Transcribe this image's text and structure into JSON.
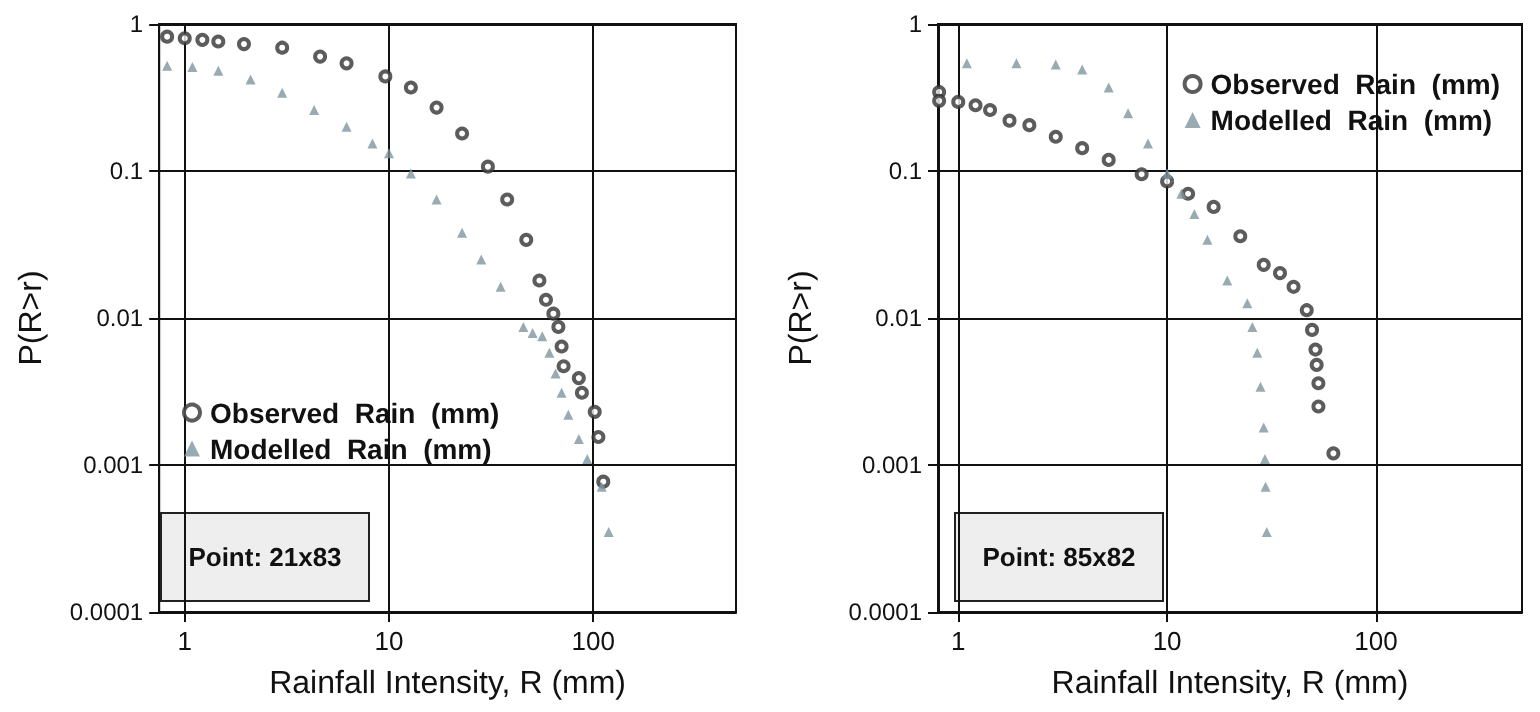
{
  "chart_data": [
    {
      "type": "scatter",
      "xlabel": "Rainfall Intensity, R (mm)",
      "ylabel": "P(R>r)",
      "log": "xy",
      "grid": true,
      "legend": "left",
      "xlim": [
        0.75,
        500
      ],
      "xticks": [
        1,
        10,
        100
      ],
      "ylim": [
        0.0001,
        1
      ],
      "yticks": [
        0.0001,
        0.001,
        0.01,
        0.1,
        1
      ],
      "annotations": [
        "Point: 21x83"
      ],
      "series": [
        {
          "name": "Observed  Rain  (mm)",
          "color": "#333333",
          "marker": "circle",
          "x": [
            0.82,
            1,
            1.22,
            1.46,
            1.95,
            3.0,
            4.6,
            6.2,
            9.6,
            12.8,
            17.1,
            22.8,
            30.5,
            37.9,
            47,
            54.5,
            58.7,
            63.8,
            67.5,
            70,
            71.6,
            85,
            88,
            101.7,
            106,
            112
          ],
          "values": [
            0.82,
            0.8,
            0.78,
            0.76,
            0.73,
            0.69,
            0.6,
            0.54,
            0.44,
            0.37,
            0.27,
            0.18,
            0.107,
            0.064,
            0.034,
            0.018,
            0.0133,
            0.0107,
            0.0087,
            0.0064,
            0.0047,
            0.0039,
            0.0031,
            0.0023,
            0.00155,
            0.00077
          ]
        },
        {
          "name": "Modelled  Rain  (mm)",
          "color": "#7f969f",
          "marker": "triangle",
          "x": [
            0.82,
            1.09,
            1.46,
            2.1,
            3.0,
            4.3,
            6.2,
            8.3,
            10,
            12.8,
            17.1,
            22.8,
            28.3,
            35.2,
            45.5,
            50.5,
            56.3,
            61,
            65.4,
            70,
            75.5,
            85,
            93.5,
            110,
            119
          ],
          "values": [
            0.52,
            0.51,
            0.48,
            0.42,
            0.34,
            0.26,
            0.2,
            0.154,
            0.132,
            0.096,
            0.064,
            0.038,
            0.025,
            0.0163,
            0.0087,
            0.0079,
            0.0075,
            0.0058,
            0.0042,
            0.0031,
            0.0022,
            0.0015,
            0.0011,
            0.00071,
            0.00035
          ]
        }
      ]
    },
    {
      "type": "scatter",
      "xlabel": "Rainfall Intensity, R (mm)",
      "ylabel": "P(R>r)",
      "log": "xy",
      "grid": true,
      "legend": "top right",
      "xlim": [
        0.8,
        500
      ],
      "xticks": [
        1,
        10,
        100
      ],
      "ylim": [
        0.0001,
        1
      ],
      "yticks": [
        0.0001,
        0.001,
        0.01,
        0.1,
        1
      ],
      "annotations": [
        "Point: 85x82"
      ],
      "series": [
        {
          "name": "Observed  Rain  (mm)",
          "color": "#333333",
          "marker": "circle",
          "x": [
            0.81,
            0.81,
            1,
            1.21,
            1.42,
            1.76,
            2.19,
            2.93,
            3.92,
            5.25,
            7.55,
            10,
            12.6,
            16.7,
            22.4,
            29.0,
            34.7,
            40.3,
            46.6,
            49.4,
            51.3,
            52.0,
            53.0,
            53.0,
            62.5
          ],
          "values": [
            0.345,
            0.3,
            0.295,
            0.28,
            0.26,
            0.22,
            0.205,
            0.171,
            0.143,
            0.119,
            0.095,
            0.085,
            0.07,
            0.057,
            0.036,
            0.023,
            0.0202,
            0.0163,
            0.0113,
            0.0083,
            0.0061,
            0.0048,
            0.0036,
            0.0025,
            0.0012
          ]
        },
        {
          "name": "Modelled  Rain  (mm)",
          "color": "#7f969f",
          "marker": "triangle",
          "x": [
            1.1,
            1.9,
            2.93,
            3.92,
            5.25,
            6.5,
            8.1,
            10,
            11.7,
            13.5,
            15.6,
            19.4,
            24.2,
            25.6,
            27.0,
            28.0,
            29.0,
            29.4,
            29.6,
            30.0
          ],
          "values": [
            0.54,
            0.54,
            0.53,
            0.49,
            0.37,
            0.247,
            0.154,
            0.096,
            0.07,
            0.051,
            0.034,
            0.018,
            0.0126,
            0.0087,
            0.0058,
            0.0034,
            0.0018,
            0.0011,
            0.00071,
            0.00035
          ]
        }
      ]
    }
  ]
}
